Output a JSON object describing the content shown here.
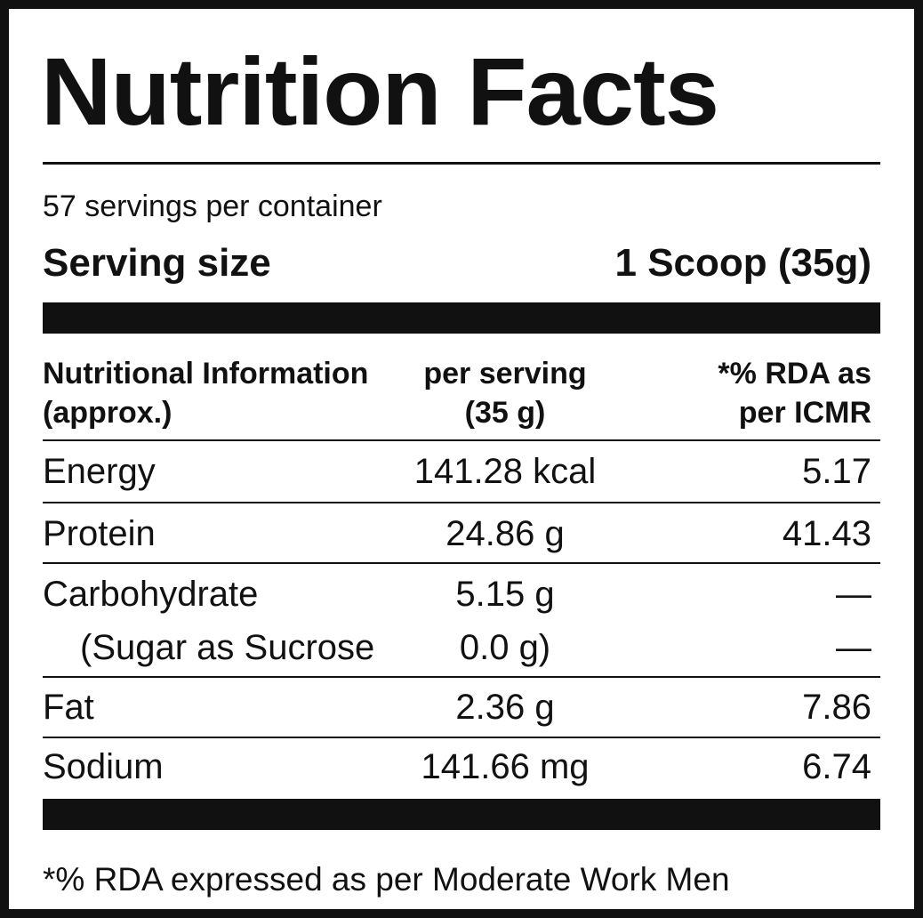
{
  "title": "Nutrition Facts",
  "servings": "57 servings per container",
  "serving_size": {
    "label": "Serving size",
    "value": "1 Scoop (35g)"
  },
  "table": {
    "header": [
      [
        "Nutritional Information",
        "(approx.)"
      ],
      [
        "per serving",
        "(35 g)"
      ],
      [
        "*% RDA as",
        "per ICMR"
      ]
    ],
    "rows": [
      [
        "Energy",
        "141.28 kcal",
        "5.17"
      ],
      [
        "Protein",
        "24.86 g",
        "41.43"
      ],
      [
        "Carbohydrate",
        "5.15 g",
        "—"
      ],
      [
        "(Sugar as Sucrose",
        "0.0 g)",
        "—"
      ],
      [
        "Fat",
        "2.36 g",
        "7.86"
      ],
      [
        "Sodium",
        "141.66 mg",
        "6.74"
      ]
    ]
  },
  "footnote": "*% RDA expressed as per Moderate Work Men"
}
